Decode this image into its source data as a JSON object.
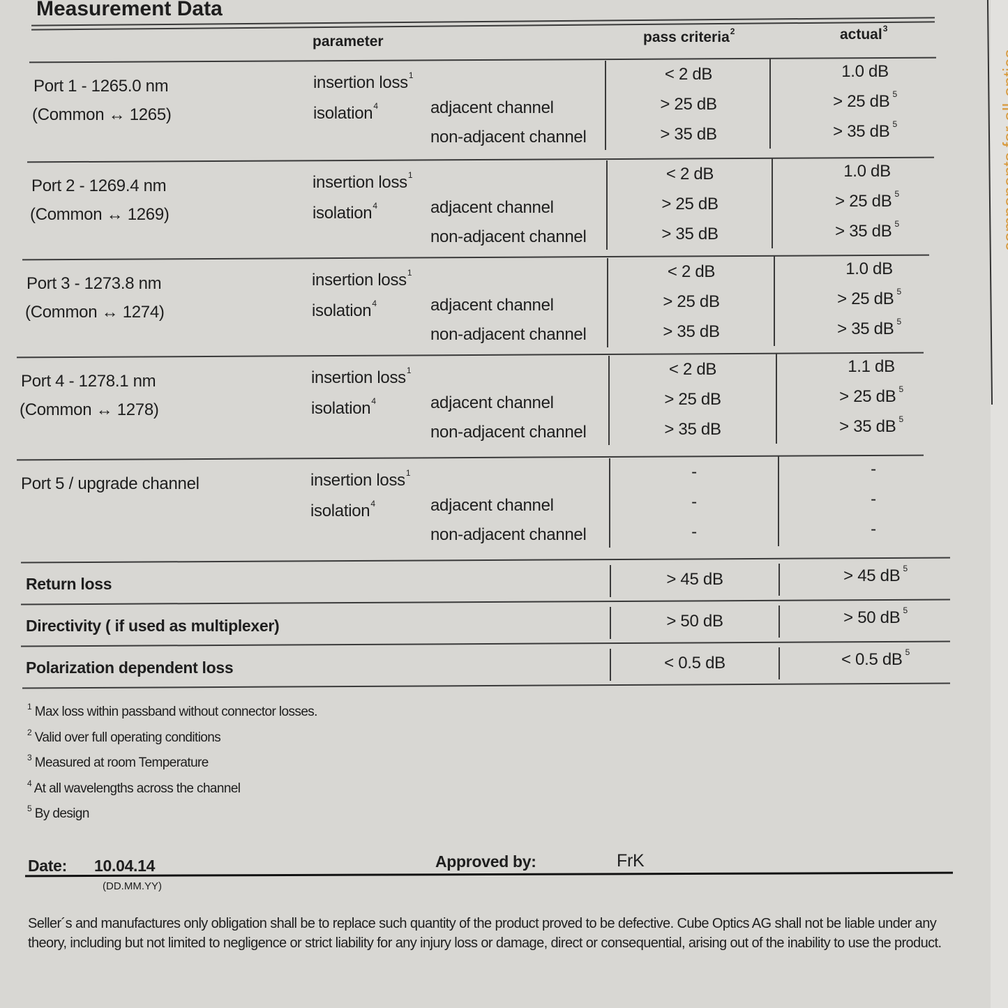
{
  "title": "Measurement Data",
  "headers": {
    "parameter": "parameter",
    "pass_criteria": "pass criteria",
    "pass_criteria_note": "2",
    "actual": "actual",
    "actual_note": "3"
  },
  "ports": [
    {
      "name": "Port 1 - 1265.0 nm",
      "sub": "(Common ↔ 1265)",
      "pass": [
        "< 2 dB",
        "> 25 dB",
        "> 35 dB"
      ],
      "actual": [
        "1.0 dB",
        "> 25 dB",
        "> 35 dB"
      ],
      "actual_notes": [
        "",
        "5",
        "5"
      ]
    },
    {
      "name": "Port 2 - 1269.4 nm",
      "sub": "(Common ↔ 1269)",
      "pass": [
        "< 2 dB",
        "> 25 dB",
        "> 35 dB"
      ],
      "actual": [
        "1.0 dB",
        "> 25 dB",
        "> 35 dB"
      ],
      "actual_notes": [
        "",
        "5",
        "5"
      ]
    },
    {
      "name": "Port 3 - 1273.8 nm",
      "sub": "(Common ↔ 1274)",
      "pass": [
        "< 2 dB",
        "> 25 dB",
        "> 35 dB"
      ],
      "actual": [
        "1.0 dB",
        "> 25 dB",
        "> 35 dB"
      ],
      "actual_notes": [
        "",
        "5",
        "5"
      ]
    },
    {
      "name": "Port 4 - 1278.1 nm",
      "sub": "(Common ↔ 1278)",
      "pass": [
        "< 2 dB",
        "> 25 dB",
        "> 35 dB"
      ],
      "actual": [
        "1.1 dB",
        "> 25 dB",
        "> 35 dB"
      ],
      "actual_notes": [
        "",
        "5",
        "5"
      ]
    },
    {
      "name": "Port 5 / upgrade channel",
      "sub": "",
      "pass": [
        "-",
        "-",
        "-"
      ],
      "actual": [
        "-",
        "-",
        "-"
      ],
      "actual_notes": [
        "",
        "",
        ""
      ]
    }
  ],
  "params": {
    "insertion_loss": "insertion loss",
    "insertion_loss_note": "1",
    "isolation": "isolation",
    "isolation_note": "4",
    "adjacent": "adjacent channel",
    "non_adjacent": "non-adjacent channel"
  },
  "summary_rows": [
    {
      "name": "Return loss",
      "pass": "> 45 dB",
      "actual": "> 45 dB",
      "actual_note": "5"
    },
    {
      "name": "Directivity ( if used as multiplexer)",
      "pass": "> 50 dB",
      "actual": "> 50 dB",
      "actual_note": "5"
    },
    {
      "name": "Polarization dependent loss",
      "pass": "< 0.5 dB",
      "actual": "< 0.5 dB",
      "actual_note": "5"
    }
  ],
  "footnotes": [
    {
      "n": "1",
      "text": "Max loss within passband without connector losses."
    },
    {
      "n": "2",
      "text": "Valid over full operating conditions"
    },
    {
      "n": "3",
      "text": "Measured at room Temperature"
    },
    {
      "n": "4",
      "text": "At all wavelengths across the channel"
    },
    {
      "n": "5",
      "text": "By design"
    }
  ],
  "date_label": "Date:",
  "date_value": "10.04.14",
  "date_format": "(DD.MM.YY)",
  "approved_label": "Approved by:",
  "approved_value": "FrK",
  "disclaimer": [
    "Seller´s and manufactures only obligation shall be to replace such quantity of the product proved to be defective. Cube Optics AG shall not be liable under any",
    "theory, including but not limited to negligence or strict liability for any injury loss or damage, direct or consequential, arising out of the inability to use the product."
  ],
  "side_text": "components for all-optica",
  "colors": {
    "paper": "#d8d7d3",
    "ink": "#1e1e1e",
    "side_text": "#d99a3c"
  }
}
